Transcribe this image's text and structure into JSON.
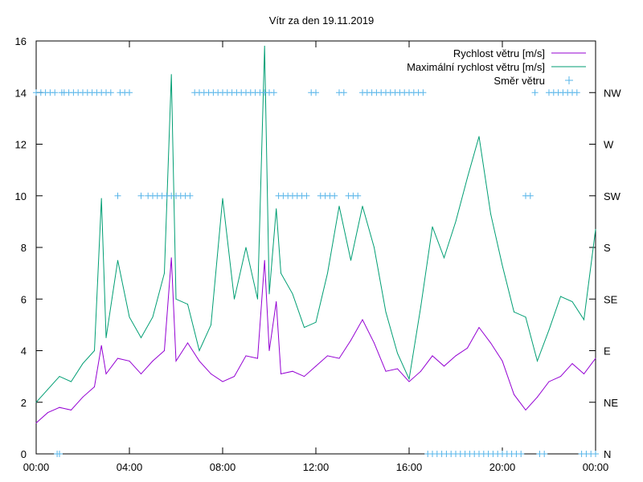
{
  "chart_data": {
    "type": "line",
    "title": "Vítr za den 19.11.2019",
    "x": {
      "tick_labels": [
        "00:00",
        "04:00",
        "08:00",
        "12:00",
        "16:00",
        "20:00",
        "00:00"
      ],
      "range_hours": [
        0,
        24
      ]
    },
    "y_left": {
      "range": [
        0,
        16
      ],
      "tick_labels": [
        "0",
        "2",
        "4",
        "6",
        "8",
        "10",
        "12",
        "14",
        "16"
      ]
    },
    "y_right": {
      "tick_labels": [
        "N",
        "NE",
        "E",
        "SE",
        "S",
        "SW",
        "W",
        "NW"
      ]
    },
    "grid": false,
    "legend_position": "top-right",
    "series": [
      {
        "name": "Rychlost větru [m/s]",
        "color": "#9400d3",
        "style": "line",
        "x_hours": [
          0,
          0.5,
          1,
          1.5,
          2,
          2.5,
          2.8,
          3,
          3.5,
          4,
          4.5,
          5,
          5.5,
          5.8,
          6,
          6.5,
          7,
          7.5,
          8,
          8.5,
          9,
          9.5,
          9.8,
          10,
          10.3,
          10.5,
          11,
          11.5,
          12,
          12.5,
          13,
          13.5,
          14,
          14.5,
          15,
          15.5,
          16,
          16.5,
          17,
          17.5,
          18,
          18.5,
          19,
          19.5,
          20,
          20.5,
          21,
          21.5,
          22,
          22.5,
          23,
          23.5,
          24
        ],
        "values": [
          1.2,
          1.6,
          1.8,
          1.7,
          2.2,
          2.6,
          4.2,
          3.1,
          3.7,
          3.6,
          3.1,
          3.6,
          4.0,
          7.6,
          3.6,
          4.3,
          3.6,
          3.1,
          2.8,
          3.0,
          3.8,
          3.7,
          7.5,
          4.0,
          5.9,
          3.1,
          3.2,
          3.0,
          3.4,
          3.8,
          3.7,
          4.4,
          5.2,
          4.3,
          3.2,
          3.3,
          2.8,
          3.2,
          3.8,
          3.4,
          3.8,
          4.1,
          4.9,
          4.3,
          3.6,
          2.3,
          1.7,
          2.2,
          2.8,
          3.0,
          3.5,
          3.1,
          3.7
        ]
      },
      {
        "name": "Maximální rychlost větru [m/s]",
        "color": "#009e73",
        "style": "line",
        "x_hours": [
          0,
          0.5,
          1,
          1.5,
          2,
          2.5,
          2.8,
          3,
          3.5,
          4,
          4.5,
          5,
          5.5,
          5.8,
          6,
          6.5,
          7,
          7.5,
          8,
          8.5,
          9,
          9.5,
          9.8,
          10,
          10.3,
          10.5,
          11,
          11.5,
          12,
          12.5,
          13,
          13.5,
          14,
          14.5,
          15,
          15.5,
          16,
          16.5,
          17,
          17.5,
          18,
          18.5,
          19,
          19.5,
          20,
          20.5,
          21,
          21.5,
          22,
          22.5,
          23,
          23.5,
          24
        ],
        "values": [
          2.0,
          2.5,
          3.0,
          2.8,
          3.5,
          4.0,
          9.9,
          4.5,
          7.5,
          5.3,
          4.5,
          5.3,
          7.0,
          14.7,
          6.0,
          5.8,
          4.0,
          5.0,
          9.9,
          6.0,
          8.0,
          6.0,
          15.8,
          6.2,
          9.5,
          7.0,
          6.2,
          4.9,
          5.1,
          7.0,
          9.6,
          7.5,
          9.6,
          8.0,
          5.5,
          3.9,
          2.9,
          5.7,
          8.8,
          7.6,
          9.0,
          10.7,
          12.3,
          9.3,
          7.3,
          5.5,
          5.3,
          3.6,
          4.8,
          6.1,
          5.9,
          5.2,
          8.7
        ]
      },
      {
        "name": "Směr větru",
        "color": "#56b4e9",
        "style": "points",
        "marker": "+",
        "x_hours": [
          0,
          0.2,
          0.4,
          0.6,
          0.8,
          0.9,
          1.0,
          1.1,
          1.2,
          1.4,
          1.6,
          1.8,
          2.0,
          2.2,
          2.4,
          2.6,
          2.8,
          3.0,
          3.2,
          3.5,
          3.6,
          3.8,
          4.0,
          4.5,
          4.8,
          5.0,
          5.2,
          5.4,
          5.6,
          5.8,
          6.0,
          6.2,
          6.4,
          6.6,
          6.8,
          7.0,
          7.2,
          7.4,
          7.6,
          7.8,
          8.0,
          8.2,
          8.4,
          8.6,
          8.8,
          9.0,
          9.2,
          9.4,
          9.6,
          9.8,
          10.0,
          10.2,
          10.4,
          10.6,
          10.8,
          11.0,
          11.2,
          11.4,
          11.6,
          11.8,
          12.0,
          12.2,
          12.4,
          12.6,
          12.8,
          13.0,
          13.2,
          13.4,
          13.6,
          13.8,
          14.0,
          14.2,
          14.4,
          14.6,
          14.8,
          15.0,
          15.2,
          15.4,
          15.6,
          15.8,
          16.0,
          16.2,
          16.4,
          16.6,
          16.8,
          17.0,
          17.2,
          17.4,
          17.6,
          17.8,
          18.0,
          18.2,
          18.4,
          18.6,
          18.8,
          19.0,
          19.2,
          19.4,
          19.6,
          19.8,
          20.0,
          20.2,
          20.4,
          20.6,
          20.8,
          21.0,
          21.2,
          21.4,
          21.6,
          21.8,
          22.0,
          22.2,
          22.4,
          22.6,
          22.8,
          23.0,
          23.2,
          23.4,
          23.6,
          23.8,
          24.0
        ],
        "directions": [
          "NW",
          "NW",
          "NW",
          "NW",
          "NW",
          "N",
          "N",
          "NW",
          "NW",
          "NW",
          "NW",
          "NW",
          "NW",
          "NW",
          "NW",
          "NW",
          "NW",
          "NW",
          "NW",
          "SW",
          "NW",
          "NW",
          "NW",
          "SW",
          "SW",
          "SW",
          "SW",
          "SW",
          "SW",
          "SW",
          "SW",
          "SW",
          "SW",
          "SW",
          "NW",
          "NW",
          "NW",
          "NW",
          "NW",
          "NW",
          "NW",
          "NW",
          "NW",
          "NW",
          "NW",
          "NW",
          "NW",
          "NW",
          "NW",
          "NW",
          "NW",
          "NW",
          "SW",
          "SW",
          "SW",
          "SW",
          "SW",
          "SW",
          "SW",
          "NW",
          "NW",
          "SW",
          "SW",
          "SW",
          "SW",
          "NW",
          "NW",
          "SW",
          "SW",
          "SW",
          "NW",
          "NW",
          "NW",
          "NW",
          "NW",
          "NW",
          "NW",
          "NW",
          "NW",
          "NW",
          "NW",
          "NW",
          "NW",
          "NW",
          "N",
          "N",
          "N",
          "N",
          "N",
          "N",
          "N",
          "N",
          "N",
          "N",
          "N",
          "N",
          "N",
          "N",
          "N",
          "N",
          "N",
          "N",
          "N",
          "N",
          "N",
          "SW",
          "SW",
          "NW",
          "N",
          "N",
          "NW",
          "NW",
          "NW",
          "NW",
          "NW",
          "NW",
          "NW",
          "N",
          "N",
          "N",
          "N",
          "N"
        ]
      }
    ]
  }
}
